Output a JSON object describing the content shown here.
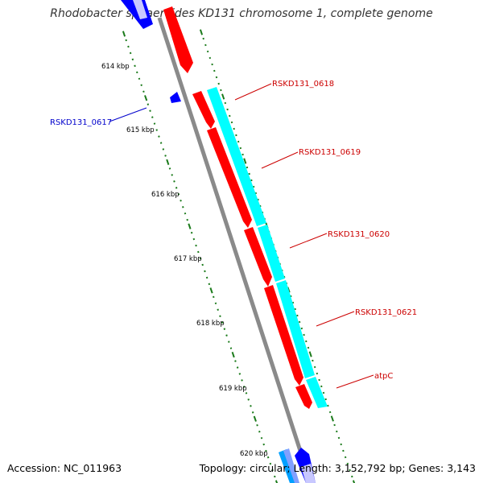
{
  "title": "Rhodobacter sphaeroides KD131 chromosome 1, complete genome",
  "footer": {
    "accession": "Accession: NC_011963",
    "summary": "Topology: circular; Length: 3,152,792 bp; Genes: 3,143"
  },
  "colors": {
    "backbone": "#8a8a8a",
    "forward_gene": "#ff0000",
    "reverse_gene": "#0000ff",
    "cds": "#00ffff",
    "forward_label": "#cc0000",
    "reverse_label": "#0000cc",
    "tick": "#1a7a1a"
  },
  "kbp_ticks": [
    "614 kbp",
    "615 kbp",
    "616 kbp",
    "617 kbp",
    "618 kbp",
    "619 kbp",
    "620 kbp"
  ],
  "gene_labels": [
    {
      "name": "RSKD131_0618",
      "strand": "forward"
    },
    {
      "name": "RSKD131_0619",
      "strand": "forward"
    },
    {
      "name": "RSKD131_0620",
      "strand": "forward"
    },
    {
      "name": "RSKD131_0621",
      "strand": "forward"
    },
    {
      "name": "atpC",
      "strand": "forward"
    },
    {
      "name": "RSKD131_0617",
      "strand": "reverse"
    }
  ]
}
